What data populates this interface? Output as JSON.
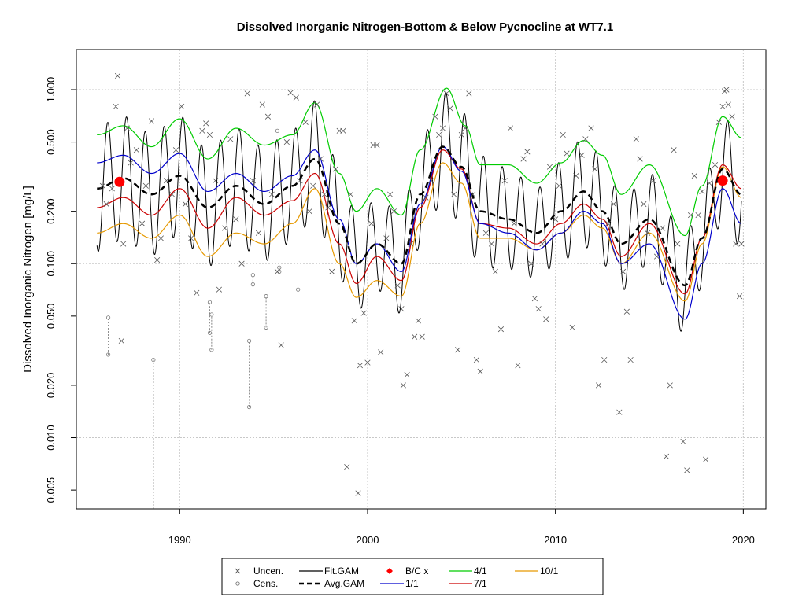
{
  "chart_data": {
    "type": "scatter",
    "title": "Dissolved Inorganic Nitrogen-Bottom & Below Pycnocline at WT7.1",
    "xlabel": "",
    "ylabel": "Dissolved Inorganic Nitrogen [mg/L]",
    "y_scale": "log",
    "xlim": [
      1984.5,
      2021.2
    ],
    "ylim": [
      0.0039,
      1.7
    ],
    "x_ticks": [
      1990,
      2000,
      2010,
      2020
    ],
    "x_tick_labels": [
      "1990",
      "2000",
      "2010",
      "2020"
    ],
    "y_ticks": [
      0.005,
      0.01,
      0.02,
      0.05,
      0.1,
      0.2,
      0.5,
      1.0
    ],
    "y_tick_labels": [
      "0.005",
      "0.010",
      "0.020",
      "0.050",
      "0.100",
      "0.200",
      "0.500",
      "1.000"
    ],
    "grid": true,
    "grid_x": [
      1990,
      2000,
      2010,
      2020
    ],
    "grid_y": [
      0.01,
      0.1,
      1.0
    ],
    "legend": {
      "position": "bottom",
      "entries": [
        {
          "key": "uncen",
          "label": "Uncen.",
          "color": "#555555"
        },
        {
          "key": "cens",
          "label": "Cens.",
          "color": "#777777"
        },
        {
          "key": "fit",
          "label": "Fit.GAM",
          "color": "#000000"
        },
        {
          "key": "avg",
          "label": "Avg.GAM",
          "color": "#000000"
        },
        {
          "key": "bc",
          "label": "B/C x",
          "color": "#ff0000"
        },
        {
          "key": "d1_1",
          "label": "1/1",
          "color": "#0000cc"
        },
        {
          "key": "d4_1",
          "label": "4/1",
          "color": "#00cc00"
        },
        {
          "key": "d7_1",
          "label": "7/1",
          "color": "#cc0000"
        },
        {
          "key": "d10_1",
          "label": "10/1",
          "color": "#e69900"
        }
      ]
    },
    "avg_knots": [
      [
        1985.6,
        0.27
      ],
      [
        1987,
        0.31
      ],
      [
        1988.5,
        0.25
      ],
      [
        1990,
        0.32
      ],
      [
        1991.5,
        0.21
      ],
      [
        1993,
        0.28
      ],
      [
        1994.5,
        0.22
      ],
      [
        1996,
        0.28
      ],
      [
        1997.2,
        0.4
      ],
      [
        1998.5,
        0.17
      ],
      [
        1999.4,
        0.1
      ],
      [
        2000.5,
        0.13
      ],
      [
        2001.8,
        0.1
      ],
      [
        2002.8,
        0.25
      ],
      [
        2004,
        0.47
      ],
      [
        2005,
        0.36
      ],
      [
        2006,
        0.2
      ],
      [
        2007.5,
        0.18
      ],
      [
        2009,
        0.15
      ],
      [
        2010.3,
        0.2
      ],
      [
        2011.5,
        0.26
      ],
      [
        2012.5,
        0.2
      ],
      [
        2013.5,
        0.13
      ],
      [
        2015,
        0.18
      ],
      [
        2016.9,
        0.075
      ],
      [
        2017.8,
        0.14
      ],
      [
        2018.9,
        0.35
      ],
      [
        2019.9,
        0.25
      ]
    ],
    "series_knots": {
      "d1_1": [
        [
          1985.6,
          0.38
        ],
        [
          1987,
          0.42
        ],
        [
          1988.5,
          0.33
        ],
        [
          1990,
          0.43
        ],
        [
          1991.5,
          0.26
        ],
        [
          1993,
          0.33
        ],
        [
          1994.5,
          0.26
        ],
        [
          1996,
          0.32
        ],
        [
          1997.2,
          0.45
        ],
        [
          1998.5,
          0.18
        ],
        [
          1999.4,
          0.1
        ],
        [
          2000.5,
          0.13
        ],
        [
          2001.8,
          0.09
        ],
        [
          2002.8,
          0.22
        ],
        [
          2004,
          0.47
        ],
        [
          2005,
          0.34
        ],
        [
          2006,
          0.17
        ],
        [
          2007.5,
          0.15
        ],
        [
          2009,
          0.12
        ],
        [
          2010.3,
          0.15
        ],
        [
          2011.5,
          0.2
        ],
        [
          2012.5,
          0.17
        ],
        [
          2013.5,
          0.1
        ],
        [
          2015,
          0.13
        ],
        [
          2016.9,
          0.048
        ],
        [
          2017.8,
          0.1
        ],
        [
          2018.9,
          0.27
        ],
        [
          2019.9,
          0.17
        ]
      ],
      "d4_1": [
        [
          1985.6,
          0.55
        ],
        [
          1987,
          0.62
        ],
        [
          1988.5,
          0.47
        ],
        [
          1990,
          0.68
        ],
        [
          1991.5,
          0.4
        ],
        [
          1993,
          0.6
        ],
        [
          1994.5,
          0.48
        ],
        [
          1996,
          0.55
        ],
        [
          1997.2,
          0.84
        ],
        [
          1998.5,
          0.33
        ],
        [
          1999.4,
          0.2
        ],
        [
          2000.5,
          0.27
        ],
        [
          2001.8,
          0.19
        ],
        [
          2002.8,
          0.45
        ],
        [
          2004.2,
          1.02
        ],
        [
          2005.2,
          0.62
        ],
        [
          2006,
          0.37
        ],
        [
          2007.5,
          0.37
        ],
        [
          2009,
          0.29
        ],
        [
          2010.3,
          0.38
        ],
        [
          2011.5,
          0.51
        ],
        [
          2012.5,
          0.42
        ],
        [
          2013.5,
          0.25
        ],
        [
          2015,
          0.37
        ],
        [
          2016.9,
          0.145
        ],
        [
          2017.8,
          0.28
        ],
        [
          2018.9,
          0.7
        ],
        [
          2019.9,
          0.53
        ]
      ],
      "d7_1": [
        [
          1985.6,
          0.21
        ],
        [
          1987,
          0.24
        ],
        [
          1988.5,
          0.19
        ],
        [
          1990,
          0.27
        ],
        [
          1991.5,
          0.16
        ],
        [
          1993,
          0.24
        ],
        [
          1994.5,
          0.19
        ],
        [
          1996,
          0.23
        ],
        [
          1997.2,
          0.33
        ],
        [
          1998.5,
          0.13
        ],
        [
          1999.4,
          0.077
        ],
        [
          2000.5,
          0.11
        ],
        [
          2001.8,
          0.08
        ],
        [
          2002.8,
          0.21
        ],
        [
          2004,
          0.45
        ],
        [
          2005,
          0.35
        ],
        [
          2006,
          0.17
        ],
        [
          2007.5,
          0.16
        ],
        [
          2009,
          0.13
        ],
        [
          2010.3,
          0.17
        ],
        [
          2011.5,
          0.22
        ],
        [
          2012.5,
          0.18
        ],
        [
          2013.5,
          0.11
        ],
        [
          2015,
          0.17
        ],
        [
          2016.9,
          0.067
        ],
        [
          2017.8,
          0.14
        ],
        [
          2018.9,
          0.37
        ],
        [
          2019.9,
          0.27
        ]
      ],
      "d10_1": [
        [
          1985.6,
          0.15
        ],
        [
          1987,
          0.17
        ],
        [
          1988.5,
          0.14
        ],
        [
          1990,
          0.19
        ],
        [
          1991.5,
          0.11
        ],
        [
          1993,
          0.15
        ],
        [
          1994.5,
          0.13
        ],
        [
          1996,
          0.17
        ],
        [
          1997.2,
          0.27
        ],
        [
          1998.5,
          0.1
        ],
        [
          1999.4,
          0.064
        ],
        [
          2000.5,
          0.08
        ],
        [
          2001.8,
          0.065
        ],
        [
          2002.8,
          0.17
        ],
        [
          2004,
          0.38
        ],
        [
          2005,
          0.29
        ],
        [
          2006,
          0.14
        ],
        [
          2007.5,
          0.14
        ],
        [
          2009,
          0.12
        ],
        [
          2010.3,
          0.15
        ],
        [
          2011.5,
          0.19
        ],
        [
          2012.5,
          0.16
        ],
        [
          2013.5,
          0.1
        ],
        [
          2015,
          0.15
        ],
        [
          2016.9,
          0.061
        ],
        [
          2017.8,
          0.13
        ],
        [
          2018.9,
          0.36
        ],
        [
          2019.9,
          0.24
        ]
      ]
    },
    "fit_amplitude": [
      [
        1985.6,
        2.3
      ],
      [
        1990,
        2.2
      ],
      [
        1996,
        2.1
      ],
      [
        1998,
        2.2
      ],
      [
        2000,
        1.8
      ],
      [
        2002.5,
        2.0
      ],
      [
        2004.3,
        2.1
      ],
      [
        2006,
        2.1
      ],
      [
        2009,
        1.8
      ],
      [
        2012,
        2.1
      ],
      [
        2014,
        1.8
      ],
      [
        2017,
        1.9
      ],
      [
        2019,
        2.0
      ],
      [
        2019.9,
        2.0
      ]
    ],
    "fit_phase_year_fraction": 0.17,
    "bc_points": [
      {
        "x": 1986.8,
        "y": 0.295
      },
      {
        "x": 2018.9,
        "y": 0.3
      }
    ],
    "uncensored_points": [
      [
        1985.9,
        0.28
      ],
      [
        1986.1,
        0.22
      ],
      [
        1986.4,
        0.27
      ],
      [
        1986.6,
        0.8
      ],
      [
        1986.7,
        1.2
      ],
      [
        1986.9,
        0.036
      ],
      [
        1987.0,
        0.13
      ],
      [
        1987.2,
        0.6
      ],
      [
        1987.4,
        0.38
      ],
      [
        1987.7,
        0.45
      ],
      [
        1988.0,
        0.17
      ],
      [
        1988.2,
        0.28
      ],
      [
        1988.5,
        0.66
      ],
      [
        1988.8,
        0.105
      ],
      [
        1989.0,
        0.14
      ],
      [
        1989.3,
        0.3
      ],
      [
        1989.6,
        0.25
      ],
      [
        1989.8,
        0.45
      ],
      [
        1990.1,
        0.8
      ],
      [
        1990.3,
        0.22
      ],
      [
        1990.6,
        0.14
      ],
      [
        1990.9,
        0.068
      ],
      [
        1991.2,
        0.58
      ],
      [
        1991.4,
        0.64
      ],
      [
        1991.6,
        0.55
      ],
      [
        1991.9,
        0.3
      ],
      [
        1992.1,
        0.071
      ],
      [
        1992.4,
        0.16
      ],
      [
        1992.7,
        0.52
      ],
      [
        1993.0,
        0.18
      ],
      [
        1993.3,
        0.1
      ],
      [
        1993.6,
        0.95
      ],
      [
        1993.9,
        0.3
      ],
      [
        1994.2,
        0.15
      ],
      [
        1994.4,
        0.82
      ],
      [
        1994.7,
        0.7
      ],
      [
        1994.9,
        0.25
      ],
      [
        1995.2,
        0.09
      ],
      [
        1995.4,
        0.034
      ],
      [
        1995.7,
        0.5
      ],
      [
        1995.9,
        0.96
      ],
      [
        1996.2,
        0.9
      ],
      [
        1996.4,
        0.3
      ],
      [
        1996.7,
        0.65
      ],
      [
        1996.9,
        0.2
      ],
      [
        1997.1,
        0.28
      ],
      [
        1997.3,
        0.82
      ],
      [
        1997.5,
        0.4
      ],
      [
        1997.7,
        0.25
      ],
      [
        1997.9,
        0.21
      ],
      [
        1998.1,
        0.09
      ],
      [
        1998.3,
        0.35
      ],
      [
        1998.5,
        0.58
      ],
      [
        1998.7,
        0.58
      ],
      [
        1998.9,
        0.0068
      ],
      [
        1999.1,
        0.25
      ],
      [
        1999.3,
        0.047
      ],
      [
        1999.5,
        0.0048
      ],
      [
        1999.6,
        0.026
      ],
      [
        1999.8,
        0.052
      ],
      [
        2000.0,
        0.027
      ],
      [
        2000.2,
        0.17
      ],
      [
        2000.3,
        0.48
      ],
      [
        2000.5,
        0.48
      ],
      [
        2000.7,
        0.031
      ],
      [
        2001.0,
        0.14
      ],
      [
        2001.2,
        0.25
      ],
      [
        2001.4,
        0.2
      ],
      [
        2001.6,
        0.075
      ],
      [
        2001.8,
        0.055
      ],
      [
        2001.9,
        0.02
      ],
      [
        2002.1,
        0.023
      ],
      [
        2002.3,
        0.13
      ],
      [
        2002.5,
        0.038
      ],
      [
        2002.7,
        0.047
      ],
      [
        2002.9,
        0.038
      ],
      [
        2003.1,
        0.24
      ],
      [
        2003.4,
        0.3
      ],
      [
        2003.6,
        0.7
      ],
      [
        2003.8,
        0.55
      ],
      [
        2004.0,
        0.6
      ],
      [
        2004.2,
        0.95
      ],
      [
        2004.4,
        0.78
      ],
      [
        2004.6,
        0.25
      ],
      [
        2004.8,
        0.032
      ],
      [
        2005.0,
        0.55
      ],
      [
        2005.2,
        0.6
      ],
      [
        2005.4,
        0.95
      ],
      [
        2005.6,
        0.25
      ],
      [
        2005.8,
        0.028
      ],
      [
        2006.0,
        0.024
      ],
      [
        2006.3,
        0.15
      ],
      [
        2006.6,
        0.13
      ],
      [
        2006.8,
        0.09
      ],
      [
        2007.1,
        0.042
      ],
      [
        2007.3,
        0.3
      ],
      [
        2007.6,
        0.6
      ],
      [
        2007.8,
        0.17
      ],
      [
        2008.0,
        0.026
      ],
      [
        2008.3,
        0.4
      ],
      [
        2008.5,
        0.44
      ],
      [
        2008.7,
        0.1
      ],
      [
        2008.9,
        0.063
      ],
      [
        2009.1,
        0.055
      ],
      [
        2009.3,
        0.13
      ],
      [
        2009.5,
        0.048
      ],
      [
        2009.7,
        0.36
      ],
      [
        2010.0,
        0.18
      ],
      [
        2010.2,
        0.28
      ],
      [
        2010.4,
        0.55
      ],
      [
        2010.6,
        0.43
      ],
      [
        2010.9,
        0.043
      ],
      [
        2011.1,
        0.32
      ],
      [
        2011.4,
        0.42
      ],
      [
        2011.6,
        0.52
      ],
      [
        2011.9,
        0.6
      ],
      [
        2012.1,
        0.35
      ],
      [
        2012.3,
        0.02
      ],
      [
        2012.6,
        0.028
      ],
      [
        2012.8,
        0.17
      ],
      [
        2013.1,
        0.22
      ],
      [
        2013.4,
        0.014
      ],
      [
        2013.6,
        0.09
      ],
      [
        2013.8,
        0.053
      ],
      [
        2014.0,
        0.028
      ],
      [
        2014.3,
        0.52
      ],
      [
        2014.5,
        0.4
      ],
      [
        2014.7,
        0.22
      ],
      [
        2014.9,
        0.15
      ],
      [
        2015.2,
        0.3
      ],
      [
        2015.4,
        0.11
      ],
      [
        2015.7,
        0.16
      ],
      [
        2015.9,
        0.0078
      ],
      [
        2016.1,
        0.02
      ],
      [
        2016.3,
        0.45
      ],
      [
        2016.5,
        0.13
      ],
      [
        2016.8,
        0.0095
      ],
      [
        2017.0,
        0.0065
      ],
      [
        2017.2,
        0.19
      ],
      [
        2017.4,
        0.32
      ],
      [
        2017.6,
        0.19
      ],
      [
        2017.8,
        0.26
      ],
      [
        2018.0,
        0.0075
      ],
      [
        2018.2,
        0.29
      ],
      [
        2018.5,
        0.37
      ],
      [
        2018.7,
        0.65
      ],
      [
        2018.9,
        0.8
      ],
      [
        2019.0,
        0.98
      ],
      [
        2019.1,
        1.0
      ],
      [
        2019.2,
        0.82
      ],
      [
        2019.4,
        0.7
      ],
      [
        2019.6,
        0.13
      ],
      [
        2019.8,
        0.065
      ],
      [
        2019.9,
        0.13
      ]
    ],
    "censored_intervals": [
      {
        "x": 1986.2,
        "y_low": 0.03,
        "y_high": 0.049
      },
      {
        "x": 1988.6,
        "y_low": 0.0039,
        "y_high": 0.028
      },
      {
        "x": 1991.6,
        "y_low": 0.04,
        "y_high": 0.06
      },
      {
        "x": 1991.7,
        "y_low": 0.032,
        "y_high": 0.051
      },
      {
        "x": 1993.7,
        "y_low": 0.015,
        "y_high": 0.036
      },
      {
        "x": 1993.9,
        "y_low": 0.076,
        "y_high": 0.086
      },
      {
        "x": 1994.6,
        "y_low": 0.043,
        "y_high": 0.065
      },
      {
        "x": 1995.3,
        "y_low": 0.09,
        "y_high": 0.095
      },
      {
        "x": 1995.2,
        "y_low": 0.58,
        "y_high": 0.58
      },
      {
        "x": 1996.3,
        "y_low": 0.071,
        "y_high": 0.071
      }
    ]
  }
}
